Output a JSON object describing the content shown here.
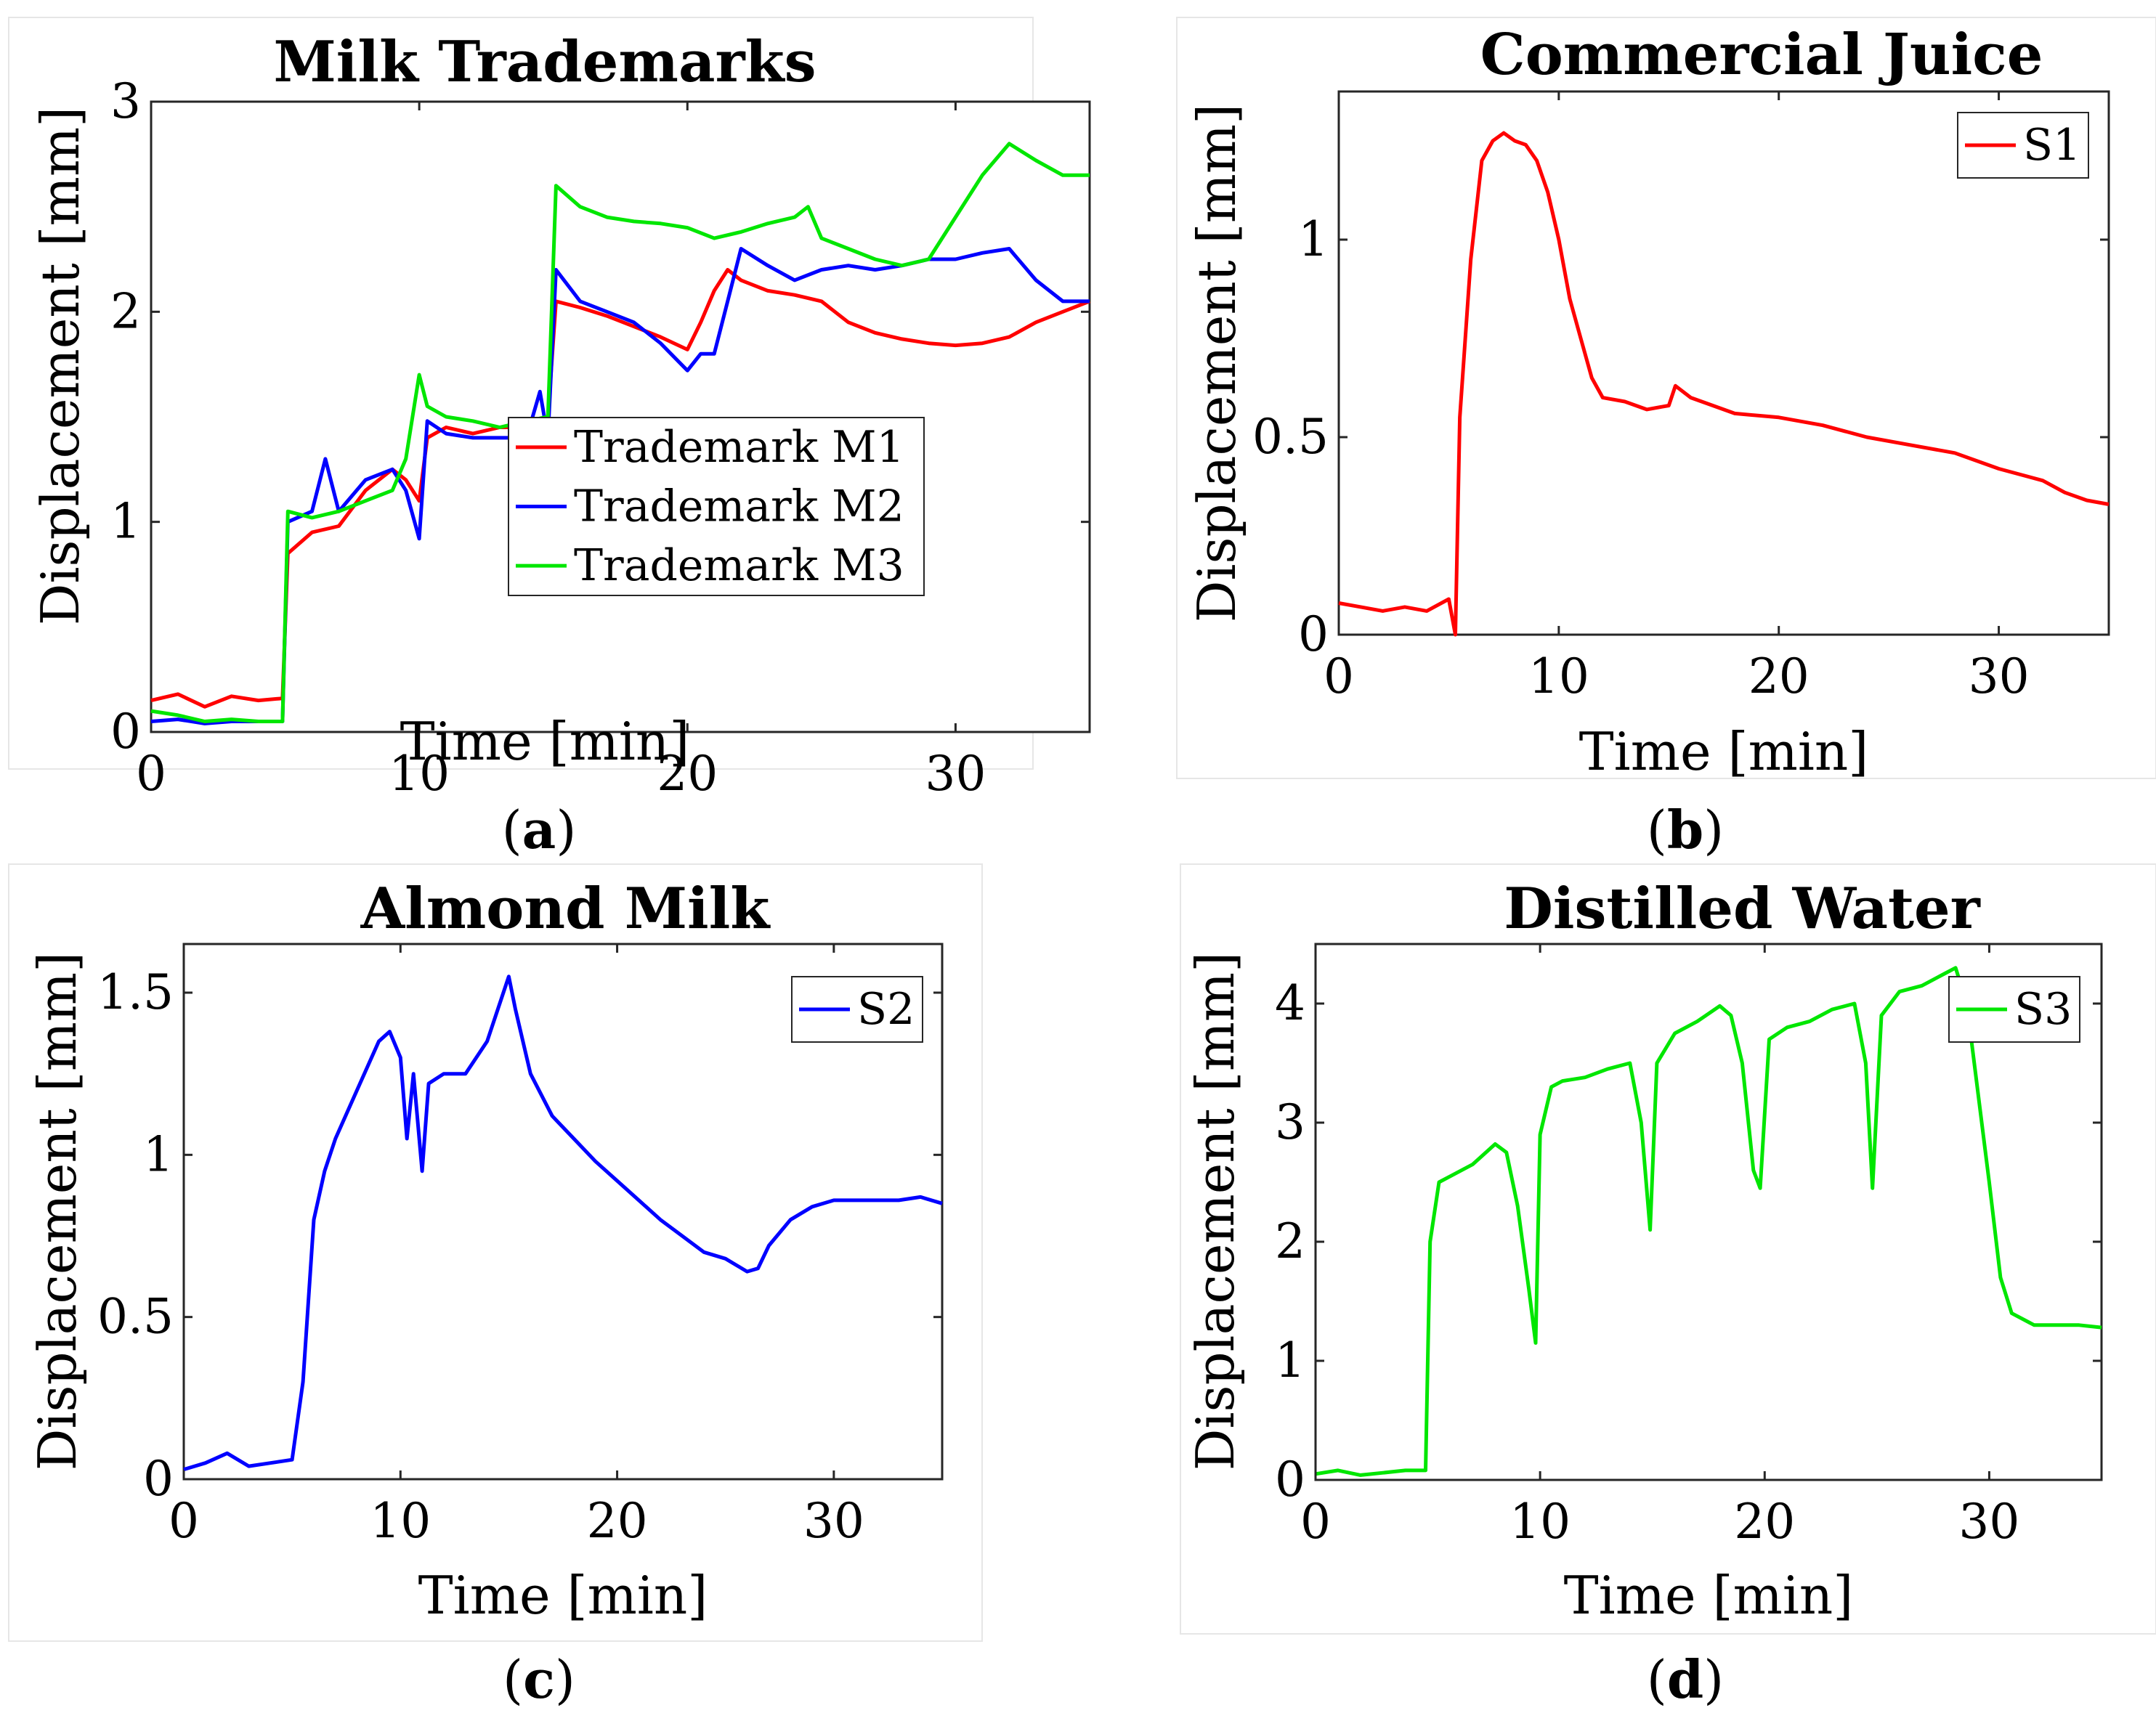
{
  "chart_data": [
    {
      "type": "line",
      "panel": "a",
      "caption_label": "a",
      "title": "Milk Trademarks",
      "xlabel": "Time [min]",
      "ylabel": "Displacement [mm]",
      "xlim": [
        0,
        35
      ],
      "ylim": [
        0,
        3
      ],
      "xticks": [
        0,
        10,
        20,
        30
      ],
      "yticks": [
        0,
        1,
        2,
        3
      ],
      "grid": false,
      "legend_position": "bottom-right",
      "series": [
        {
          "name": "Trademark M1",
          "color": "#ff0000",
          "points": [
            [
              0,
              0.15
            ],
            [
              1,
              0.18
            ],
            [
              2,
              0.12
            ],
            [
              3,
              0.17
            ],
            [
              4,
              0.15
            ],
            [
              4.9,
              0.16
            ],
            [
              5.1,
              0.85
            ],
            [
              6,
              0.95
            ],
            [
              7,
              0.98
            ],
            [
              8,
              1.15
            ],
            [
              9,
              1.25
            ],
            [
              9.5,
              1.2
            ],
            [
              10,
              1.1
            ],
            [
              10.3,
              1.4
            ],
            [
              11,
              1.45
            ],
            [
              12,
              1.42
            ],
            [
              13,
              1.45
            ],
            [
              14,
              1.45
            ],
            [
              14.8,
              1.5
            ],
            [
              15.1,
              2.05
            ],
            [
              16,
              2.02
            ],
            [
              17,
              1.98
            ],
            [
              18,
              1.93
            ],
            [
              19,
              1.88
            ],
            [
              20,
              1.82
            ],
            [
              20.5,
              1.95
            ],
            [
              21,
              2.1
            ],
            [
              21.5,
              2.2
            ],
            [
              22,
              2.15
            ],
            [
              23,
              2.1
            ],
            [
              24,
              2.08
            ],
            [
              25,
              2.05
            ],
            [
              26,
              1.95
            ],
            [
              27,
              1.9
            ],
            [
              28,
              1.87
            ],
            [
              29,
              1.85
            ],
            [
              30,
              1.84
            ],
            [
              31,
              1.85
            ],
            [
              32,
              1.88
            ],
            [
              33,
              1.95
            ],
            [
              34,
              2.0
            ],
            [
              35,
              2.05
            ]
          ]
        },
        {
          "name": "Trademark M2",
          "color": "#0000ff",
          "points": [
            [
              0,
              0.05
            ],
            [
              1,
              0.06
            ],
            [
              2,
              0.04
            ],
            [
              3,
              0.05
            ],
            [
              4,
              0.05
            ],
            [
              4.9,
              0.05
            ],
            [
              5.1,
              1.0
            ],
            [
              6,
              1.05
            ],
            [
              6.5,
              1.3
            ],
            [
              7,
              1.05
            ],
            [
              8,
              1.2
            ],
            [
              9,
              1.25
            ],
            [
              9.5,
              1.15
            ],
            [
              10,
              0.92
            ],
            [
              10.3,
              1.48
            ],
            [
              11,
              1.42
            ],
            [
              12,
              1.4
            ],
            [
              13,
              1.4
            ],
            [
              14,
              1.4
            ],
            [
              14.5,
              1.62
            ],
            [
              14.8,
              1.4
            ],
            [
              15.1,
              2.2
            ],
            [
              16,
              2.05
            ],
            [
              17,
              2.0
            ],
            [
              18,
              1.95
            ],
            [
              19,
              1.85
            ],
            [
              20,
              1.72
            ],
            [
              20.5,
              1.8
            ],
            [
              21,
              1.8
            ],
            [
              21.5,
              2.05
            ],
            [
              22,
              2.3
            ],
            [
              23,
              2.22
            ],
            [
              24,
              2.15
            ],
            [
              25,
              2.2
            ],
            [
              26,
              2.22
            ],
            [
              27,
              2.2
            ],
            [
              28,
              2.22
            ],
            [
              29,
              2.25
            ],
            [
              30,
              2.25
            ],
            [
              31,
              2.28
            ],
            [
              32,
              2.3
            ],
            [
              33,
              2.15
            ],
            [
              34,
              2.05
            ],
            [
              35,
              2.05
            ]
          ]
        },
        {
          "name": "Trademark M3",
          "color": "#00e600",
          "points": [
            [
              0,
              0.1
            ],
            [
              1,
              0.08
            ],
            [
              2,
              0.05
            ],
            [
              3,
              0.06
            ],
            [
              4,
              0.05
            ],
            [
              4.9,
              0.05
            ],
            [
              5.1,
              1.05
            ],
            [
              6,
              1.02
            ],
            [
              7,
              1.05
            ],
            [
              8,
              1.1
            ],
            [
              9,
              1.15
            ],
            [
              9.5,
              1.3
            ],
            [
              10,
              1.7
            ],
            [
              10.3,
              1.55
            ],
            [
              11,
              1.5
            ],
            [
              12,
              1.48
            ],
            [
              13,
              1.45
            ],
            [
              14,
              1.48
            ],
            [
              14.8,
              1.5
            ],
            [
              15.1,
              2.6
            ],
            [
              16,
              2.5
            ],
            [
              17,
              2.45
            ],
            [
              18,
              2.43
            ],
            [
              19,
              2.42
            ],
            [
              20,
              2.4
            ],
            [
              21,
              2.35
            ],
            [
              22,
              2.38
            ],
            [
              23,
              2.42
            ],
            [
              24,
              2.45
            ],
            [
              24.5,
              2.5
            ],
            [
              25,
              2.35
            ],
            [
              26,
              2.3
            ],
            [
              27,
              2.25
            ],
            [
              28,
              2.22
            ],
            [
              29,
              2.25
            ],
            [
              30,
              2.45
            ],
            [
              31,
              2.65
            ],
            [
              32,
              2.8
            ],
            [
              33,
              2.72
            ],
            [
              34,
              2.65
            ],
            [
              35,
              2.65
            ]
          ]
        }
      ]
    },
    {
      "type": "line",
      "panel": "b",
      "caption_label": "b",
      "title": "Commercial Juice",
      "xlabel": "Time [min]",
      "ylabel": "Displacement [mm]",
      "xlim": [
        0,
        35
      ],
      "ylim": [
        0,
        1.375
      ],
      "xticks": [
        0,
        10,
        20,
        30
      ],
      "yticks": [
        0,
        0.5,
        1
      ],
      "grid": false,
      "legend_position": "top-right",
      "series": [
        {
          "name": "S1",
          "color": "#ff0000",
          "points": [
            [
              0,
              0.08
            ],
            [
              1,
              0.07
            ],
            [
              2,
              0.06
            ],
            [
              3,
              0.07
            ],
            [
              4,
              0.06
            ],
            [
              5,
              0.09
            ],
            [
              5.3,
              0.0
            ],
            [
              5.5,
              0.55
            ],
            [
              6,
              0.95
            ],
            [
              6.5,
              1.2
            ],
            [
              7,
              1.25
            ],
            [
              7.5,
              1.27
            ],
            [
              8,
              1.25
            ],
            [
              8.5,
              1.24
            ],
            [
              9,
              1.2
            ],
            [
              9.5,
              1.12
            ],
            [
              10,
              1.0
            ],
            [
              10.5,
              0.85
            ],
            [
              11,
              0.75
            ],
            [
              11.5,
              0.65
            ],
            [
              12,
              0.6
            ],
            [
              13,
              0.59
            ],
            [
              14,
              0.57
            ],
            [
              15,
              0.58
            ],
            [
              15.3,
              0.63
            ],
            [
              16,
              0.6
            ],
            [
              17,
              0.58
            ],
            [
              18,
              0.56
            ],
            [
              20,
              0.55
            ],
            [
              22,
              0.53
            ],
            [
              24,
              0.5
            ],
            [
              26,
              0.48
            ],
            [
              28,
              0.46
            ],
            [
              30,
              0.42
            ],
            [
              32,
              0.39
            ],
            [
              33,
              0.36
            ],
            [
              34,
              0.34
            ],
            [
              35,
              0.33
            ]
          ]
        }
      ]
    },
    {
      "type": "line",
      "panel": "c",
      "caption_label": "c",
      "title": "Almond Milk",
      "xlabel": "Time [min]",
      "ylabel": "Displacement [mm]",
      "xlim": [
        0,
        35
      ],
      "ylim": [
        0,
        1.65
      ],
      "xticks": [
        0,
        10,
        20,
        30
      ],
      "yticks": [
        0,
        0.5,
        1,
        1.5
      ],
      "grid": false,
      "legend_position": "top-right",
      "series": [
        {
          "name": "S2",
          "color": "#0000ff",
          "points": [
            [
              0,
              0.03
            ],
            [
              1,
              0.05
            ],
            [
              2,
              0.08
            ],
            [
              3,
              0.04
            ],
            [
              4,
              0.05
            ],
            [
              5,
              0.06
            ],
            [
              5.5,
              0.3
            ],
            [
              6,
              0.8
            ],
            [
              6.5,
              0.95
            ],
            [
              7,
              1.05
            ],
            [
              8,
              1.2
            ],
            [
              9,
              1.35
            ],
            [
              9.5,
              1.38
            ],
            [
              10,
              1.3
            ],
            [
              10.3,
              1.05
            ],
            [
              10.6,
              1.25
            ],
            [
              11,
              0.95
            ],
            [
              11.3,
              1.22
            ],
            [
              12,
              1.25
            ],
            [
              13,
              1.25
            ],
            [
              14,
              1.35
            ],
            [
              15,
              1.55
            ],
            [
              15.3,
              1.45
            ],
            [
              16,
              1.25
            ],
            [
              17,
              1.12
            ],
            [
              18,
              1.05
            ],
            [
              19,
              0.98
            ],
            [
              20,
              0.92
            ],
            [
              21,
              0.86
            ],
            [
              22,
              0.8
            ],
            [
              23,
              0.75
            ],
            [
              24,
              0.7
            ],
            [
              25,
              0.68
            ],
            [
              26,
              0.64
            ],
            [
              26.5,
              0.65
            ],
            [
              27,
              0.72
            ],
            [
              28,
              0.8
            ],
            [
              29,
              0.84
            ],
            [
              30,
              0.86
            ],
            [
              31,
              0.86
            ],
            [
              32,
              0.86
            ],
            [
              33,
              0.86
            ],
            [
              34,
              0.87
            ],
            [
              35,
              0.85
            ]
          ]
        }
      ]
    },
    {
      "type": "line",
      "panel": "d",
      "caption_label": "d",
      "title": "Distilled Water",
      "xlabel": "Time [min]",
      "ylabel": "Displacement [mm]",
      "xlim": [
        0,
        35
      ],
      "ylim": [
        0,
        4.5
      ],
      "xticks": [
        0,
        10,
        20,
        30
      ],
      "yticks": [
        0,
        1,
        2,
        3,
        4
      ],
      "grid": false,
      "legend_position": "top-right",
      "series": [
        {
          "name": "S3",
          "color": "#00e600",
          "points": [
            [
              0,
              0.05
            ],
            [
              1,
              0.08
            ],
            [
              2,
              0.04
            ],
            [
              3,
              0.06
            ],
            [
              4,
              0.08
            ],
            [
              4.9,
              0.08
            ],
            [
              5.1,
              2.0
            ],
            [
              5.5,
              2.5
            ],
            [
              6,
              2.55
            ],
            [
              7,
              2.65
            ],
            [
              8,
              2.82
            ],
            [
              8.5,
              2.75
            ],
            [
              9,
              2.3
            ],
            [
              9.5,
              1.6
            ],
            [
              9.8,
              1.15
            ],
            [
              10,
              2.9
            ],
            [
              10.5,
              3.3
            ],
            [
              11,
              3.35
            ],
            [
              12,
              3.38
            ],
            [
              13,
              3.45
            ],
            [
              14,
              3.5
            ],
            [
              14.5,
              3.0
            ],
            [
              14.9,
              2.1
            ],
            [
              15.2,
              3.5
            ],
            [
              16,
              3.75
            ],
            [
              17,
              3.85
            ],
            [
              18,
              3.98
            ],
            [
              18.5,
              3.9
            ],
            [
              19,
              3.5
            ],
            [
              19.5,
              2.6
            ],
            [
              19.8,
              2.45
            ],
            [
              20.2,
              3.7
            ],
            [
              21,
              3.8
            ],
            [
              22,
              3.85
            ],
            [
              23,
              3.95
            ],
            [
              24,
              4.0
            ],
            [
              24.5,
              3.5
            ],
            [
              24.8,
              2.45
            ],
            [
              25.2,
              3.9
            ],
            [
              26,
              4.1
            ],
            [
              27,
              4.15
            ],
            [
              28,
              4.25
            ],
            [
              28.5,
              4.3
            ],
            [
              29,
              4.0
            ],
            [
              30,
              2.5
            ],
            [
              30.5,
              1.7
            ],
            [
              31,
              1.4
            ],
            [
              32,
              1.3
            ],
            [
              33,
              1.3
            ],
            [
              34,
              1.3
            ],
            [
              35,
              1.28
            ]
          ]
        }
      ]
    }
  ]
}
